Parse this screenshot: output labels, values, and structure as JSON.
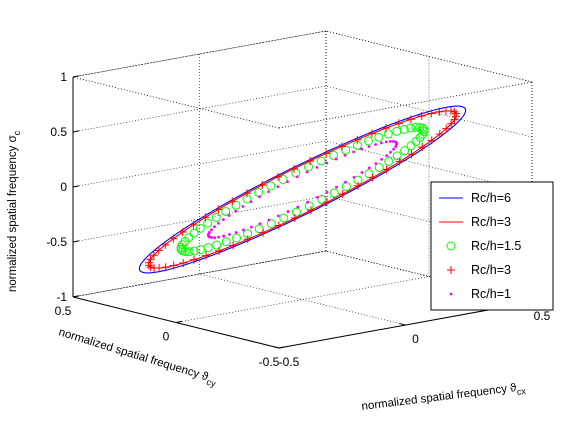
{
  "chart_data": {
    "type": "scatter3d",
    "title": "",
    "xlabel": "normalized spatial frequency ϑ",
    "xlabel_sub": "cx",
    "ylabel": "normalized spatial frequency ϑ",
    "ylabel_sub": "cy",
    "zlabel": "normalized spatial frequency σ",
    "zlabel_sub": "c",
    "xlim": [
      -0.5,
      0.5
    ],
    "ylim": [
      -0.5,
      0.5
    ],
    "zlim": [
      -1,
      1
    ],
    "xticks": [
      "-0.5",
      "0",
      "0.5"
    ],
    "yticks": [
      "-0.5",
      "0",
      "0.5"
    ],
    "zticks": [
      "-1",
      "-0.5",
      "0",
      "0.5",
      "1"
    ],
    "grid": true,
    "box": true,
    "legend_position": "right",
    "series": [
      {
        "name": "Rc/h=6",
        "style": "line",
        "color": "#0000ff",
        "radius": 1.0,
        "points": 180
      },
      {
        "name": "Rc/h=3",
        "style": "line",
        "color": "#ff0000",
        "radius": 0.9428,
        "points": 180
      },
      {
        "name": "Rc/h=1.5",
        "style": "circle",
        "color": "#00ff00",
        "radius": 0.7454,
        "points": 60
      },
      {
        "name": "Rc/h=3",
        "style": "plus",
        "color": "#ff0000",
        "radius": 0.9428,
        "points": 60
      },
      {
        "name": "Rc/h=1",
        "style": "dot",
        "color": "#ff00ff",
        "radius": 0.5774,
        "points": 60
      }
    ]
  }
}
